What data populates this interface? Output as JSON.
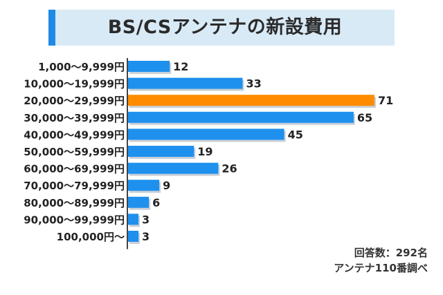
{
  "colors": {
    "bar": "#1e90ee",
    "highlight": "#ff8c00",
    "shadow": "#c8d0d8",
    "axis": "#444444",
    "title_bg": "#d9eaf7",
    "title_accent": "#1f8be6"
  },
  "chart_data": {
    "type": "bar",
    "orientation": "horizontal",
    "title": "BS/CSアンテナの新設費用",
    "categories": [
      "1,000〜9,999円",
      "10,000〜19,999円",
      "20,000〜29,999円",
      "30,000〜39,999円",
      "40,000〜49,999円",
      "50,000〜59,999円",
      "60,000〜69,999円",
      "70,000〜79,999円",
      "80,000〜89,999円",
      "90,000〜99,999円",
      "100,000円〜"
    ],
    "values": [
      12,
      33,
      71,
      65,
      45,
      19,
      26,
      9,
      6,
      3,
      3
    ],
    "highlight_index": 2,
    "xlim": [
      0,
      71
    ],
    "grid": false,
    "legend": "none"
  },
  "notes": {
    "respondents": "回答数：292名",
    "source": "アンテナ110番調べ"
  }
}
